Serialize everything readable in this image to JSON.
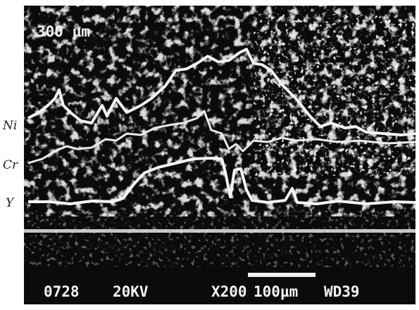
{
  "header": {
    "scale_label": "300 µm"
  },
  "annotations": {
    "trace_1": "Ni",
    "trace_2": "Cr",
    "trace_3": "Y"
  },
  "footer": {
    "image_number": "0728",
    "voltage": "20KV",
    "magnification": "X200",
    "scale_bar": "100µm",
    "working_distance": "WD39"
  }
}
